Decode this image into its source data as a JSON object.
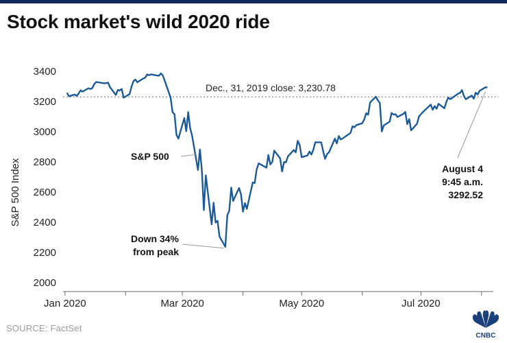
{
  "header": {
    "title": "Stock market's wild 2020 ride"
  },
  "footer": {
    "source": "SOURCE: FactSet",
    "logo_text": "CNBC",
    "logo_icon": "cnbc-peacock-icon"
  },
  "chart_data": {
    "type": "line",
    "title": "Stock market's wild 2020 ride",
    "ylabel": "S&P 500 Index",
    "ylim": [
      2000,
      3400
    ],
    "yticks": [
      2000,
      2200,
      2400,
      2600,
      2800,
      3000,
      3200,
      3400
    ],
    "xticks": [
      {
        "date": "2020-01-01",
        "label": "Jan 2020"
      },
      {
        "date": "2020-03-01",
        "label": "Mar 2020"
      },
      {
        "date": "2020-05-01",
        "label": "May 2020"
      },
      {
        "date": "2020-07-01",
        "label": "Jul 2020"
      }
    ],
    "xlim": [
      "2019-12-31",
      "2020-08-07"
    ],
    "reference_line": {
      "value": 3230.78,
      "label": "Dec., 31, 2019 close:  3,230.78"
    },
    "series": [
      {
        "name": "S&P 500",
        "color": "#1b5a96",
        "x": [
          "2020-01-02",
          "2020-01-03",
          "2020-01-06",
          "2020-01-07",
          "2020-01-08",
          "2020-01-09",
          "2020-01-10",
          "2020-01-13",
          "2020-01-14",
          "2020-01-15",
          "2020-01-16",
          "2020-01-17",
          "2020-01-21",
          "2020-01-22",
          "2020-01-23",
          "2020-01-24",
          "2020-01-27",
          "2020-01-28",
          "2020-01-29",
          "2020-01-30",
          "2020-01-31",
          "2020-02-03",
          "2020-02-04",
          "2020-02-05",
          "2020-02-06",
          "2020-02-07",
          "2020-02-10",
          "2020-02-11",
          "2020-02-12",
          "2020-02-13",
          "2020-02-14",
          "2020-02-18",
          "2020-02-19",
          "2020-02-20",
          "2020-02-21",
          "2020-02-24",
          "2020-02-25",
          "2020-02-26",
          "2020-02-27",
          "2020-02-28",
          "2020-03-02",
          "2020-03-03",
          "2020-03-04",
          "2020-03-05",
          "2020-03-06",
          "2020-03-09",
          "2020-03-10",
          "2020-03-11",
          "2020-03-12",
          "2020-03-13",
          "2020-03-16",
          "2020-03-17",
          "2020-03-18",
          "2020-03-19",
          "2020-03-20",
          "2020-03-23",
          "2020-03-24",
          "2020-03-25",
          "2020-03-26",
          "2020-03-27",
          "2020-03-30",
          "2020-03-31",
          "2020-04-01",
          "2020-04-02",
          "2020-04-03",
          "2020-04-06",
          "2020-04-07",
          "2020-04-08",
          "2020-04-09",
          "2020-04-13",
          "2020-04-14",
          "2020-04-15",
          "2020-04-16",
          "2020-04-17",
          "2020-04-20",
          "2020-04-21",
          "2020-04-22",
          "2020-04-23",
          "2020-04-24",
          "2020-04-27",
          "2020-04-28",
          "2020-04-29",
          "2020-04-30",
          "2020-05-01",
          "2020-05-04",
          "2020-05-05",
          "2020-05-06",
          "2020-05-07",
          "2020-05-08",
          "2020-05-11",
          "2020-05-12",
          "2020-05-13",
          "2020-05-14",
          "2020-05-15",
          "2020-05-18",
          "2020-05-19",
          "2020-05-20",
          "2020-05-21",
          "2020-05-22",
          "2020-05-26",
          "2020-05-27",
          "2020-05-28",
          "2020-05-29",
          "2020-06-01",
          "2020-06-02",
          "2020-06-03",
          "2020-06-04",
          "2020-06-05",
          "2020-06-08",
          "2020-06-09",
          "2020-06-10",
          "2020-06-11",
          "2020-06-12",
          "2020-06-15",
          "2020-06-16",
          "2020-06-17",
          "2020-06-18",
          "2020-06-19",
          "2020-06-22",
          "2020-06-23",
          "2020-06-24",
          "2020-06-25",
          "2020-06-26",
          "2020-06-29",
          "2020-06-30",
          "2020-07-01",
          "2020-07-02",
          "2020-07-06",
          "2020-07-07",
          "2020-07-08",
          "2020-07-09",
          "2020-07-10",
          "2020-07-13",
          "2020-07-14",
          "2020-07-15",
          "2020-07-16",
          "2020-07-17",
          "2020-07-20",
          "2020-07-21",
          "2020-07-22",
          "2020-07-23",
          "2020-07-24",
          "2020-07-27",
          "2020-07-28",
          "2020-07-29",
          "2020-07-30",
          "2020-07-31",
          "2020-08-03",
          "2020-08-04"
        ],
        "y": [
          3257.85,
          3234.85,
          3246.28,
          3237.18,
          3253.05,
          3274.7,
          3265.35,
          3288.13,
          3283.15,
          3289.29,
          3316.81,
          3329.62,
          3320.79,
          3321.75,
          3325.54,
          3295.47,
          3243.63,
          3276.24,
          3273.4,
          3283.66,
          3225.52,
          3248.92,
          3297.59,
          3334.69,
          3345.78,
          3327.71,
          3352.09,
          3357.75,
          3379.45,
          3373.94,
          3380.16,
          3370.29,
          3386.15,
          3373.23,
          3337.75,
          3225.89,
          3128.21,
          3116.39,
          2978.76,
          2954.22,
          3090.23,
          3003.37,
          3130.12,
          3023.94,
          2972.37,
          2746.56,
          2882.23,
          2741.38,
          2480.64,
          2711.02,
          2386.13,
          2529.19,
          2398.1,
          2409.39,
          2304.92,
          2237.4,
          2447.33,
          2475.56,
          2630.07,
          2541.47,
          2626.65,
          2584.59,
          2470.5,
          2526.9,
          2488.65,
          2663.68,
          2659.41,
          2749.98,
          2789.82,
          2761.63,
          2846.06,
          2783.36,
          2799.55,
          2874.56,
          2823.16,
          2736.56,
          2799.31,
          2797.8,
          2836.74,
          2878.48,
          2863.39,
          2939.51,
          2912.43,
          2830.71,
          2842.74,
          2868.44,
          2848.42,
          2881.19,
          2929.8,
          2930.19,
          2870.12,
          2820.0,
          2852.5,
          2863.7,
          2953.91,
          2922.94,
          2971.61,
          2948.51,
          2955.45,
          2991.77,
          3036.13,
          3029.73,
          3044.31,
          3055.73,
          3080.82,
          3122.87,
          3112.35,
          3193.93,
          3232.39,
          3207.18,
          3190.14,
          3002.1,
          3041.31,
          3066.59,
          3124.74,
          3113.49,
          3115.34,
          3097.74,
          3117.86,
          3131.29,
          3050.33,
          3083.76,
          3009.05,
          3053.24,
          3100.29,
          3115.86,
          3130.01,
          3179.72,
          3145.32,
          3169.94,
          3152.05,
          3185.04,
          3155.22,
          3197.52,
          3226.56,
          3215.57,
          3224.73,
          3251.84,
          3257.3,
          3276.02,
          3235.66,
          3215.63,
          3239.41,
          3218.44,
          3258.44,
          3246.22,
          3271.12,
          3294.61,
          3292.52
        ]
      }
    ],
    "annotations": [
      {
        "text": "S&P 500",
        "target": "series",
        "bold": true
      },
      {
        "text": "Down 34%",
        "text2": "from peak",
        "target_date": "2020-03-23",
        "target_value": 2237.4,
        "bold": true
      },
      {
        "text": "August 4",
        "text2": "9:45 a.m.",
        "text3": "3292.52",
        "target_date": "2020-08-04",
        "target_value": 3292.52,
        "bold": true
      }
    ]
  },
  "colors": {
    "line": "#1b5a96",
    "topbar": "#102a5c",
    "reference": "#888888",
    "axis": "#666666"
  }
}
